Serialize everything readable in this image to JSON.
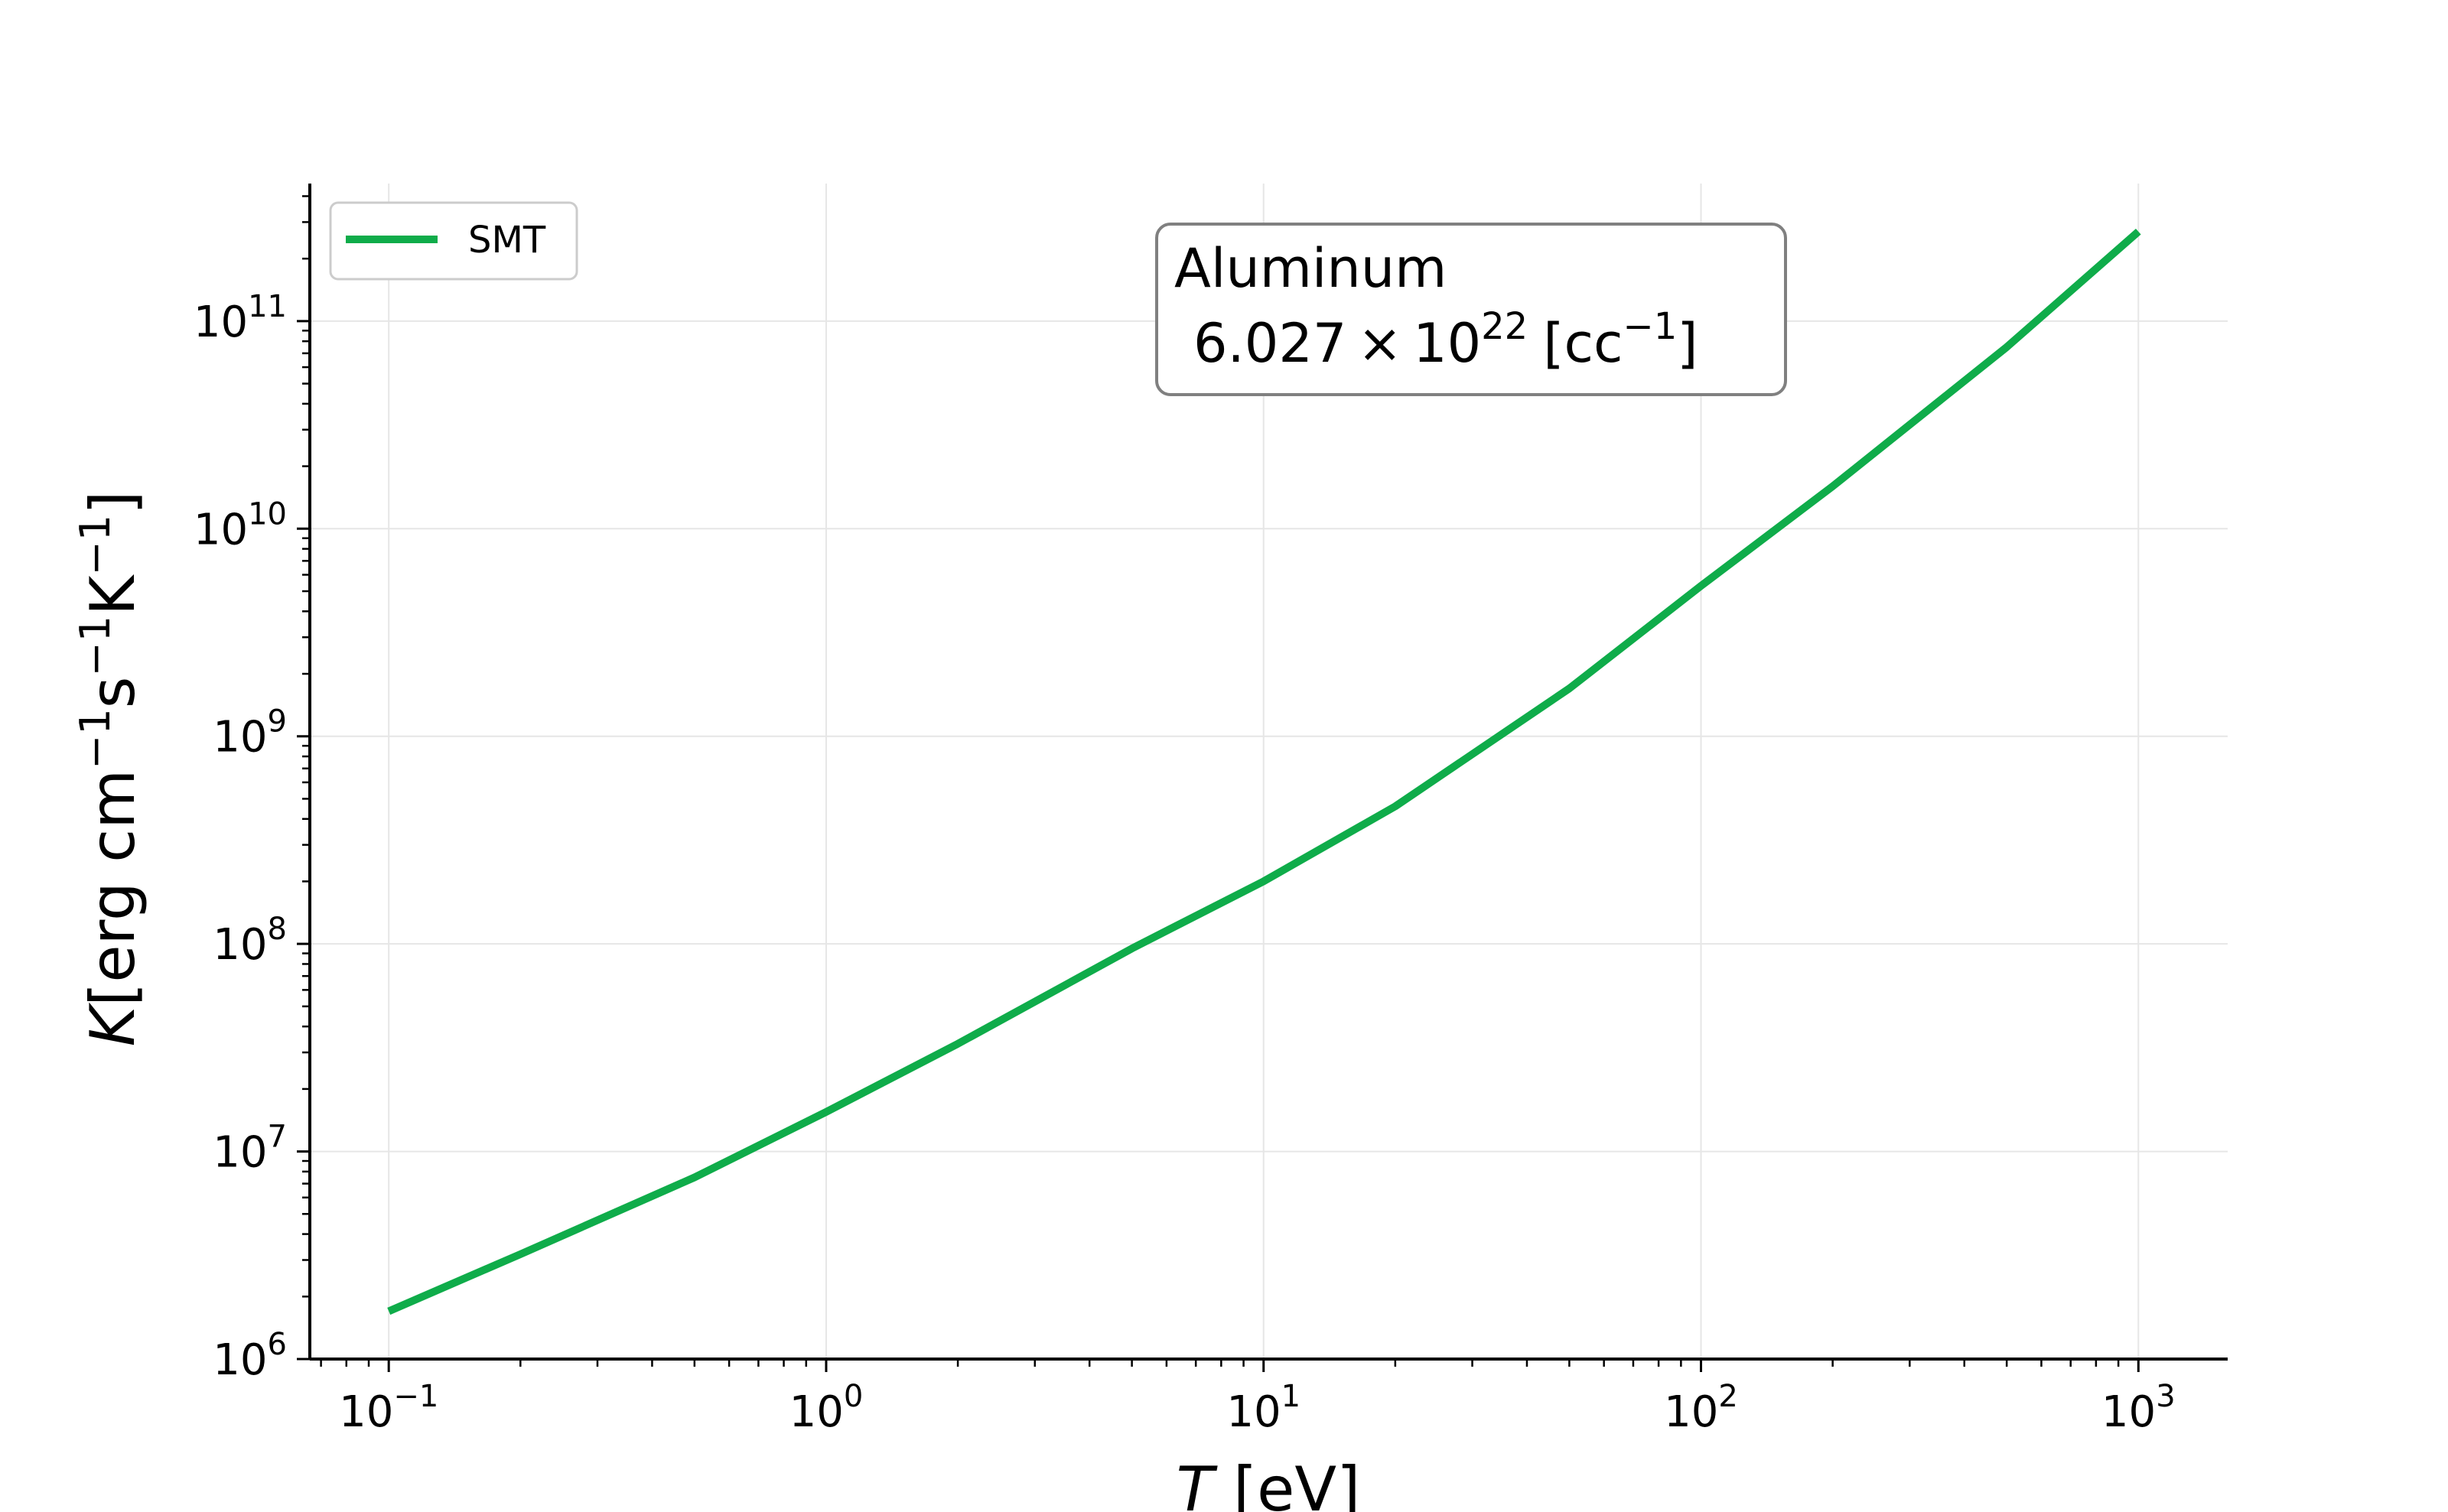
{
  "chart_data": {
    "type": "line",
    "xscale": "log",
    "yscale": "log",
    "xlim": [
      0.066,
      1600
    ],
    "ylim": [
      1000000.0,
      460000000000.0
    ],
    "grid": true,
    "legend_position": "top-left",
    "xlabel": {
      "var": "T",
      "rest": " [eV]"
    },
    "ylabel": {
      "var": "K",
      "rest": "[erg cm",
      "sup1": "−1",
      "mid": "s",
      "sup2": "−1",
      "end": "K",
      "sup3": "−1",
      "close": "]"
    },
    "xticks": [
      {
        "value": 0.1,
        "base": "10",
        "exp": "−1"
      },
      {
        "value": 1,
        "base": "10",
        "exp": "0"
      },
      {
        "value": 10,
        "base": "10",
        "exp": "1"
      },
      {
        "value": 100,
        "base": "10",
        "exp": "2"
      },
      {
        "value": 1000,
        "base": "10",
        "exp": "3"
      }
    ],
    "yticks": [
      {
        "value": 1000000.0,
        "base": "10",
        "exp": "6"
      },
      {
        "value": 10000000.0,
        "base": "10",
        "exp": "7"
      },
      {
        "value": 100000000.0,
        "base": "10",
        "exp": "8"
      },
      {
        "value": 1000000000.0,
        "base": "10",
        "exp": "9"
      },
      {
        "value": 10000000000.0,
        "base": "10",
        "exp": "10"
      },
      {
        "value": 100000000000.0,
        "base": "10",
        "exp": "11"
      }
    ],
    "series": [
      {
        "name": "SMT",
        "color": "#0fac4a",
        "x": [
          0.1,
          0.2,
          0.5,
          1,
          2,
          5,
          10,
          20,
          50,
          100,
          200,
          500,
          1000
        ],
        "y": [
          1700000.0,
          3200000.0,
          7500000.0,
          15500000.0,
          33000000.0,
          95000000.0,
          200000000.0,
          460000000.0,
          1700000000.0,
          5300000000.0,
          16000000000.0,
          75000000000.0,
          270000000000.0
        ]
      }
    ],
    "annotation": {
      "line1": "Aluminum",
      "mantissa": "6.027",
      "times": "×",
      "base": "10",
      "exp": "22",
      "unit_open": "[cc",
      "unit_exp": "−1",
      "unit_close": "]"
    }
  }
}
